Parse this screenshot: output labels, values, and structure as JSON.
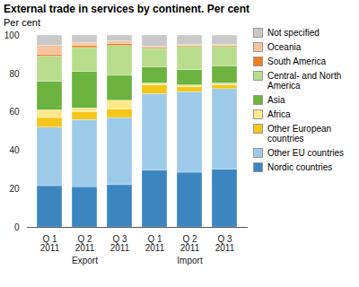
{
  "chart_data": {
    "type": "bar",
    "title": "External trade in services by continent. Per cent",
    "y_label": "Per cent",
    "stacked": true,
    "legend": "right",
    "grid": false,
    "categories": [
      "Q 1\n2011",
      "Q 2\n2011",
      "Q 3\n2011",
      "Q 1\n2011",
      "Q 2\n2011",
      "Q 3\n2011"
    ],
    "x_groups": [
      "Export",
      "Export",
      "Export",
      "Import",
      "Import",
      "Import"
    ],
    "ylim": [
      0,
      100
    ],
    "yticks": [
      0,
      20,
      40,
      60,
      80,
      100
    ],
    "series": [
      {
        "name": "Nordic countries",
        "color": "#3b86c0",
        "values": [
          21.5,
          21,
          22,
          29.5,
          28.5,
          30
        ]
      },
      {
        "name": "Other EU countries",
        "color": "#9ecae9",
        "values": [
          30.5,
          35,
          35,
          40,
          42,
          42
        ]
      },
      {
        "name": "Other European countries",
        "color": "#f5c518",
        "values": [
          5,
          4,
          4.5,
          4.5,
          2.5,
          2
        ]
      },
      {
        "name": "Africa",
        "color": "#fbe98c",
        "values": [
          4,
          2,
          4.5,
          1,
          1,
          1
        ]
      },
      {
        "name": "Asia",
        "color": "#6cb33f",
        "values": [
          15,
          19,
          13,
          8.5,
          8,
          9
        ]
      },
      {
        "name": "Central- and North America",
        "color": "#b8de8d",
        "values": [
          13,
          12.5,
          15.5,
          9.5,
          12,
          10
        ]
      },
      {
        "name": "South America",
        "color": "#ef7f22",
        "values": [
          1,
          1,
          1,
          0.5,
          0.5,
          0.5
        ]
      },
      {
        "name": "Oceania",
        "color": "#f8c49d",
        "values": [
          4.5,
          1.5,
          1.5,
          0.5,
          0.5,
          0.5
        ]
      },
      {
        "name": "Not specified",
        "color": "#c9c9c9",
        "values": [
          5.5,
          4,
          3,
          6,
          5,
          5
        ]
      }
    ]
  }
}
